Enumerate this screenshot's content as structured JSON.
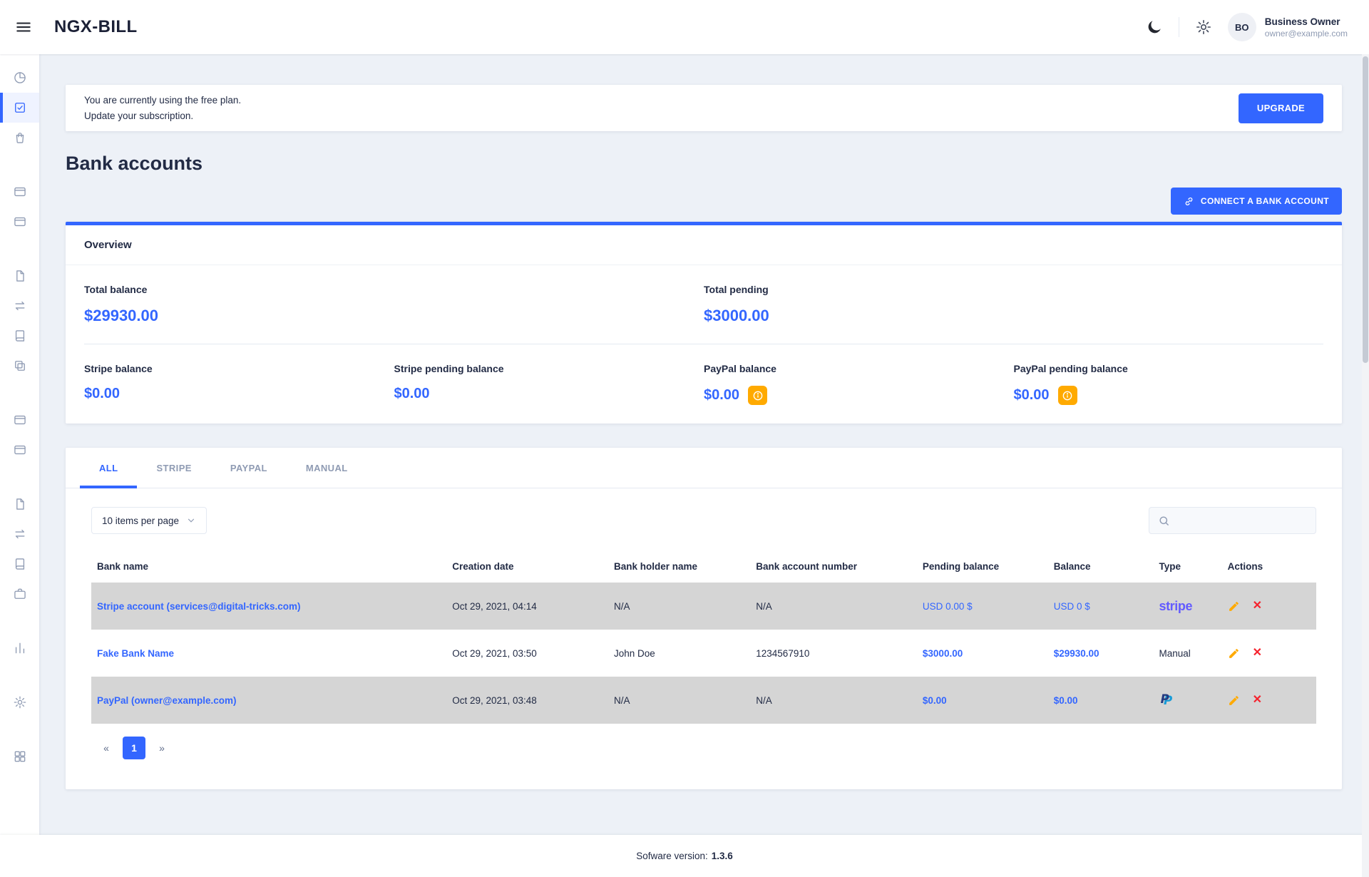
{
  "header": {
    "brand": "NGX-BILL",
    "user": {
      "initials": "BO",
      "name": "Business Owner",
      "email": "owner@example.com"
    }
  },
  "sidebar": {
    "items": [
      {
        "icon": "pie-chart"
      },
      {
        "icon": "edit-square",
        "active": true
      },
      {
        "icon": "shopping-bag"
      },
      {
        "gap": true
      },
      {
        "icon": "credit-card"
      },
      {
        "icon": "credit-card"
      },
      {
        "gap": true
      },
      {
        "icon": "file-text"
      },
      {
        "icon": "swap"
      },
      {
        "icon": "book"
      },
      {
        "icon": "layers"
      },
      {
        "gap": true
      },
      {
        "icon": "credit-card"
      },
      {
        "icon": "credit-card"
      },
      {
        "gap": true
      },
      {
        "icon": "file-text"
      },
      {
        "icon": "swap"
      },
      {
        "icon": "book"
      },
      {
        "icon": "briefcase"
      },
      {
        "gap": true
      },
      {
        "icon": "bar-chart"
      },
      {
        "gap": true
      },
      {
        "icon": "gear"
      },
      {
        "gap": true
      },
      {
        "icon": "grid"
      }
    ]
  },
  "banner": {
    "line1": "You are currently using the free plan.",
    "line2": "Update your subscription.",
    "upgrade_label": "UPGRADE"
  },
  "page": {
    "title": "Bank accounts",
    "connect_button_label": "CONNECT A BANK ACCOUNT"
  },
  "overview": {
    "title": "Overview",
    "totals": [
      {
        "label": "Total balance",
        "value": "$29930.00"
      },
      {
        "label": "Total pending",
        "value": "$3000.00"
      }
    ],
    "balances": [
      {
        "label": "Stripe balance",
        "value": "$0.00"
      },
      {
        "label": "Stripe pending balance",
        "value": "$0.00"
      },
      {
        "label": "PayPal balance",
        "value": "$0.00"
      },
      {
        "label": "PayPal pending balance",
        "value": "$0.00"
      }
    ]
  },
  "accounts": {
    "tabs": [
      "ALL",
      "STRIPE",
      "PAYPAL",
      "MANUAL"
    ],
    "active_tab": "ALL",
    "per_page_label": "10 items per page",
    "search_value": "",
    "columns": [
      "Bank name",
      "Creation date",
      "Bank holder name",
      "Bank account number",
      "Pending balance",
      "Balance",
      "Type",
      "Actions"
    ],
    "rows": [
      {
        "bank_name": "Stripe account (services@digital-tricks.com)",
        "creation_date": "Oct 29, 2021, 04:14",
        "holder": "N/A",
        "account_number": "N/A",
        "pending": "USD 0.00 $",
        "balance": "USD 0 $",
        "type": "stripe",
        "type_display": "stripe-wordmark"
      },
      {
        "bank_name": "Fake Bank Name",
        "creation_date": "Oct 29, 2021, 03:50",
        "holder": "John Doe",
        "account_number": "1234567910",
        "pending": "$3000.00",
        "balance": "$29930.00",
        "type": "Manual",
        "type_display": "text"
      },
      {
        "bank_name": "PayPal (owner@example.com)",
        "creation_date": "Oct 29, 2021, 03:48",
        "holder": "N/A",
        "account_number": "N/A",
        "pending": "$0.00",
        "balance": "$0.00",
        "type": "PayPal",
        "type_display": "paypal-logo"
      }
    ],
    "pagination": {
      "prev": "«",
      "pages": [
        "1"
      ],
      "active_page": "1",
      "next": "»"
    }
  },
  "footer": {
    "label": "Sofware version:",
    "version": "1.3.6"
  }
}
